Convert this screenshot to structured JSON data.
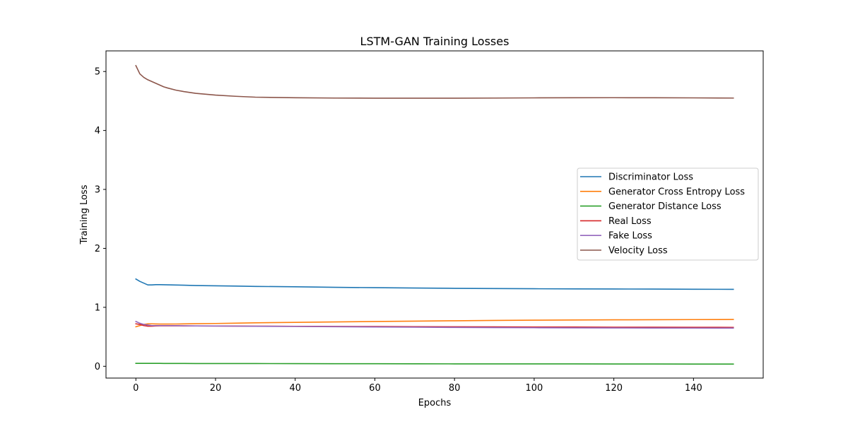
{
  "chart_data": {
    "type": "line",
    "title": "LSTM-GAN Training Losses",
    "xlabel": "Epochs",
    "ylabel": "Training Loss",
    "xlim": [
      -7.5,
      157.5
    ],
    "ylim": [
      -0.2,
      5.35
    ],
    "xticks": [
      0,
      20,
      40,
      60,
      80,
      100,
      120,
      140
    ],
    "yticks": [
      0,
      1,
      2,
      3,
      4,
      5
    ],
    "grid": false,
    "legend_position": "center-right",
    "x": [
      0,
      1,
      2,
      3,
      4,
      5,
      6,
      7,
      8,
      10,
      12,
      15,
      20,
      25,
      30,
      40,
      50,
      60,
      70,
      80,
      90,
      100,
      110,
      120,
      130,
      140,
      150
    ],
    "series": [
      {
        "name": "Discriminator Loss",
        "color": "#1f77b4",
        "values": [
          1.48,
          1.44,
          1.41,
          1.38,
          1.38,
          1.385,
          1.384,
          1.383,
          1.382,
          1.379,
          1.375,
          1.369,
          1.365,
          1.36,
          1.355,
          1.348,
          1.34,
          1.333,
          1.327,
          1.322,
          1.318,
          1.315,
          1.313,
          1.311,
          1.309,
          1.307,
          1.305
        ]
      },
      {
        "name": "Generator Cross Entropy Loss",
        "color": "#ff7f0e",
        "values": [
          0.67,
          0.69,
          0.71,
          0.72,
          0.72,
          0.718,
          0.716,
          0.716,
          0.716,
          0.717,
          0.719,
          0.722,
          0.726,
          0.731,
          0.737,
          0.745,
          0.752,
          0.76,
          0.766,
          0.772,
          0.778,
          0.782,
          0.785,
          0.788,
          0.79,
          0.792,
          0.794
        ]
      },
      {
        "name": "Generator Distance Loss",
        "color": "#2ca02c",
        "values": [
          0.05,
          0.05,
          0.05,
          0.05,
          0.05,
          0.049,
          0.049,
          0.048,
          0.048,
          0.048,
          0.048,
          0.047,
          0.047,
          0.046,
          0.046,
          0.045,
          0.044,
          0.043,
          0.042,
          0.041,
          0.041,
          0.04,
          0.04,
          0.039,
          0.039,
          0.038,
          0.038
        ]
      },
      {
        "name": "Real Loss",
        "color": "#d62728",
        "values": [
          0.72,
          0.71,
          0.69,
          0.68,
          0.68,
          0.685,
          0.686,
          0.686,
          0.686,
          0.686,
          0.685,
          0.684,
          0.683,
          0.682,
          0.681,
          0.678,
          0.676,
          0.674,
          0.672,
          0.67,
          0.668,
          0.666,
          0.665,
          0.663,
          0.662,
          0.661,
          0.66
        ]
      },
      {
        "name": "Fake Loss",
        "color": "#9467bd",
        "values": [
          0.76,
          0.73,
          0.71,
          0.7,
          0.69,
          0.69,
          0.69,
          0.69,
          0.69,
          0.689,
          0.687,
          0.685,
          0.683,
          0.681,
          0.679,
          0.675,
          0.671,
          0.667,
          0.663,
          0.659,
          0.656,
          0.654,
          0.652,
          0.65,
          0.649,
          0.648,
          0.647
        ]
      },
      {
        "name": "Velocity Loss",
        "color": "#8c564b",
        "values": [
          5.1,
          4.96,
          4.9,
          4.86,
          4.83,
          4.8,
          4.77,
          4.74,
          4.72,
          4.685,
          4.66,
          4.63,
          4.6,
          4.58,
          4.565,
          4.555,
          4.55,
          4.548,
          4.548,
          4.548,
          4.55,
          4.553,
          4.555,
          4.556,
          4.555,
          4.553,
          4.55
        ]
      }
    ]
  }
}
